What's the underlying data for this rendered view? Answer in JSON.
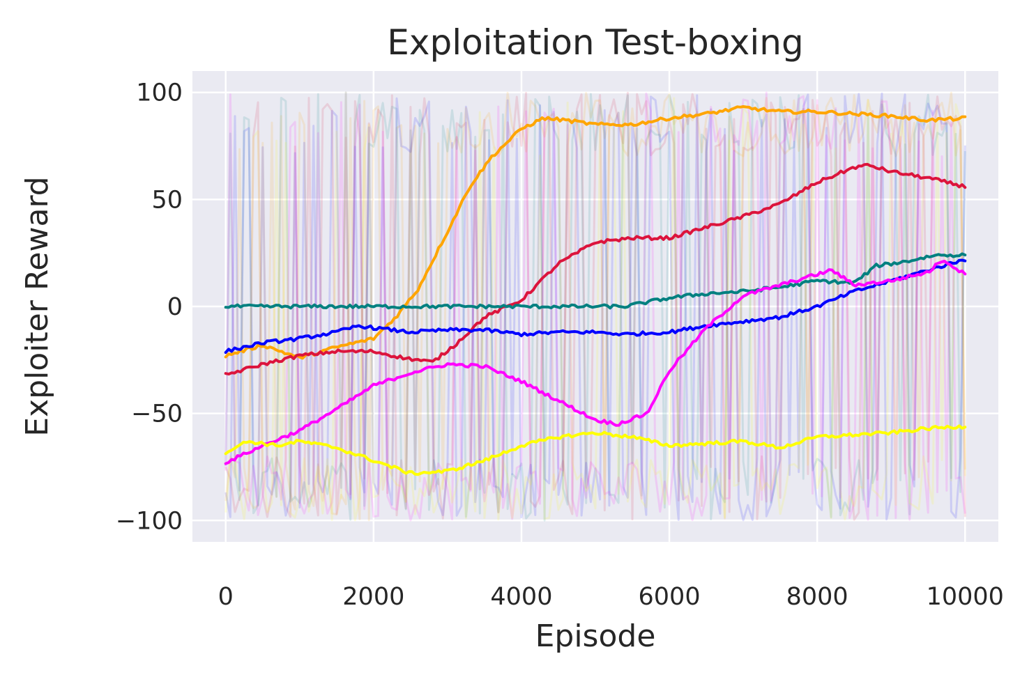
{
  "chart_data": {
    "type": "line",
    "title": "Exploitation Test-boxing",
    "xlabel": "Episode",
    "ylabel": "Exploiter Reward",
    "xlim": [
      -450,
      10450
    ],
    "ylim": [
      -110,
      110
    ],
    "xticks": [
      0,
      2000,
      4000,
      6000,
      8000,
      10000
    ],
    "xtick_labels": [
      "0",
      "2000",
      "4000",
      "6000",
      "8000",
      "10000"
    ],
    "yticks": [
      -100,
      -50,
      0,
      50,
      100
    ],
    "ytick_labels": [
      "−100",
      "−50",
      "0",
      "50",
      "100"
    ],
    "grid": true,
    "background": "#eaeaf2",
    "raw_noise_range": [
      -100,
      100
    ],
    "series": [
      {
        "color": "#ffa500",
        "x": [
          0,
          500,
          1000,
          1500,
          2000,
          2300,
          2600,
          3000,
          3300,
          3600,
          4000,
          4300,
          4600,
          5000,
          5500,
          6000,
          6500,
          7000,
          7500,
          8000,
          8500,
          9000,
          9500,
          10000
        ],
        "y": [
          -23,
          -18,
          -24,
          -19,
          -15,
          -5,
          8,
          35,
          56,
          70,
          83,
          88,
          87,
          85,
          85,
          88,
          90,
          93,
          91,
          91,
          90,
          89,
          87,
          88
        ]
      },
      {
        "color": "#dc143c",
        "x": [
          0,
          500,
          1000,
          1500,
          2000,
          2400,
          2800,
          3100,
          3500,
          4000,
          4500,
          5000,
          5500,
          6000,
          6500,
          7000,
          7500,
          8000,
          8500,
          8700,
          9000,
          9500,
          10000
        ],
        "y": [
          -32,
          -27,
          -23,
          -21,
          -21,
          -24,
          -26,
          -18,
          -5,
          3,
          20,
          30,
          32,
          32,
          37,
          42,
          48,
          58,
          65,
          66,
          63,
          60,
          56
        ]
      },
      {
        "color": "#008080",
        "x": [
          0,
          5000,
          5400,
          5700,
          6000,
          6500,
          7000,
          7500,
          8000,
          8500,
          8800,
          9200,
          9600,
          10000
        ],
        "y": [
          0,
          0,
          0,
          2,
          4,
          6,
          7,
          9,
          12,
          11,
          19,
          21,
          24,
          24
        ]
      },
      {
        "color": "#0000ff",
        "x": [
          0,
          500,
          1000,
          1500,
          1800,
          2000,
          2500,
          3000,
          3500,
          4000,
          4500,
          5000,
          5400,
          6000,
          6500,
          7000,
          7500,
          8000,
          8500,
          9000,
          9500,
          10000
        ],
        "y": [
          -21,
          -17,
          -15,
          -12,
          -9,
          -10,
          -12,
          -11,
          -11,
          -13,
          -12,
          -12,
          -13,
          -12,
          -9,
          -7,
          -5,
          0,
          7,
          12,
          17,
          22
        ]
      },
      {
        "color": "#ff00ff",
        "x": [
          0,
          500,
          1000,
          1500,
          2000,
          2500,
          3000,
          3500,
          4000,
          4500,
          5000,
          5300,
          5700,
          6000,
          6500,
          7000,
          7500,
          8000,
          8200,
          8500,
          9000,
          9500,
          9700,
          10000
        ],
        "y": [
          -73,
          -65,
          -58,
          -48,
          -37,
          -31,
          -27,
          -28,
          -35,
          -44,
          -53,
          -55,
          -50,
          -30,
          -10,
          5,
          10,
          15,
          17,
          10,
          12,
          16,
          22,
          15
        ]
      },
      {
        "color": "#ffff00",
        "x": [
          0,
          300,
          700,
          1000,
          1500,
          2000,
          2500,
          3000,
          3500,
          4000,
          4500,
          5000,
          5500,
          6000,
          6500,
          7000,
          7500,
          8000,
          8500,
          9000,
          9500,
          10000
        ],
        "y": [
          -68,
          -63,
          -65,
          -63,
          -66,
          -72,
          -78,
          -77,
          -72,
          -65,
          -61,
          -59,
          -61,
          -65,
          -64,
          -63,
          -66,
          -61,
          -60,
          -59,
          -57,
          -56
        ]
      }
    ]
  }
}
